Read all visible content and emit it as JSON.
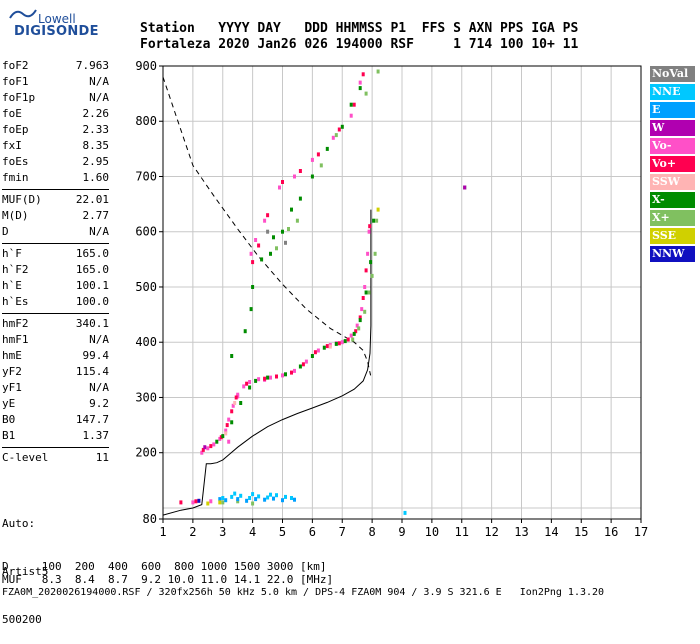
{
  "logo": {
    "top": "Lowell",
    "main": "DIGISONDE"
  },
  "header": {
    "line1": "Station   YYYY DAY   DDD HHMMSS P1  FFS S AXN PPS IGA PS",
    "line2": "Fortaleza 2020 Jan26 026 194000 RSF     1 714 100 10+ 11"
  },
  "params": {
    "group1": [
      {
        "label": "foF2",
        "value": "7.963"
      },
      {
        "label": "foF1",
        "value": "N/A"
      },
      {
        "label": "foF1p",
        "value": "N/A"
      },
      {
        "label": "foE",
        "value": "2.26"
      },
      {
        "label": "foEp",
        "value": "2.33"
      },
      {
        "label": "fxI",
        "value": "8.35"
      },
      {
        "label": "foEs",
        "value": "2.95"
      },
      {
        "label": "fmin",
        "value": "1.60"
      }
    ],
    "group2": [
      {
        "label": "MUF(D)",
        "value": "22.01"
      },
      {
        "label": "M(D)",
        "value": "2.77"
      },
      {
        "label": "D",
        "value": "N/A"
      }
    ],
    "group3": [
      {
        "label": "h`F",
        "value": "165.0"
      },
      {
        "label": "h`F2",
        "value": "165.0"
      },
      {
        "label": "h`E",
        "value": "100.1"
      },
      {
        "label": "h`Es",
        "value": "100.0"
      }
    ],
    "group4": [
      {
        "label": "hmF2",
        "value": "340.1"
      },
      {
        "label": "hmF1",
        "value": "N/A"
      },
      {
        "label": "hmE",
        "value": "99.4"
      },
      {
        "label": "yF2",
        "value": "115.4"
      },
      {
        "label": "yF1",
        "value": "N/A"
      },
      {
        "label": "yE",
        "value": "9.2"
      },
      {
        "label": "B0",
        "value": "147.7"
      },
      {
        "label": "B1",
        "value": "1.37"
      }
    ],
    "group5": [
      {
        "label": "C-level",
        "value": "11"
      }
    ]
  },
  "auto": {
    "line1": "Auto:",
    "line2": "Artist5",
    "line3": "500200"
  },
  "legend": [
    {
      "label": "NoVal",
      "color": "#808080",
      "text": "#ffffff"
    },
    {
      "label": "NNE",
      "color": "#00c8ff",
      "text": "#ffffff"
    },
    {
      "label": "E",
      "color": "#00a0ff",
      "text": "#ffffff"
    },
    {
      "label": "W",
      "color": "#b000b0",
      "text": "#ffffff"
    },
    {
      "label": "Vo-",
      "color": "#ff50c8",
      "text": "#ffffff"
    },
    {
      "label": "Vo+",
      "color": "#ff0050",
      "text": "#ffffff"
    },
    {
      "label": "SSW",
      "color": "#ffb4b4",
      "text": "#ffffff"
    },
    {
      "label": "X-",
      "color": "#008c00",
      "text": "#ffffff"
    },
    {
      "label": "X+",
      "color": "#80c060",
      "text": "#ffffff"
    },
    {
      "label": "SSE",
      "color": "#d0d000",
      "text": "#ffffff"
    },
    {
      "label": "NNW",
      "color": "#1010c0",
      "text": "#ffffff"
    }
  ],
  "footer": {
    "line1": "D     100  200  400  600  800 1000 1500 3000 [km]",
    "line2": "MUF   8.3  8.4  8.7  9.2 10.0 11.0 14.1 22.0 [MHz]",
    "line3": "FZA0M_2020026194000.RSF / 320fx256h 50 kHz 5.0 km / DPS-4 FZA0M 904 / 3.9 S 321.6 E   Ion2Png 1.3.20"
  },
  "chart_data": {
    "type": "scatter",
    "title": "",
    "xlabel": "",
    "ylabel": "",
    "xlim": [
      1,
      17
    ],
    "ylim": [
      80,
      900
    ],
    "xticks": [
      1,
      2,
      3,
      4,
      5,
      6,
      7,
      8,
      9,
      10,
      11,
      12,
      13,
      14,
      15,
      16,
      17
    ],
    "yticks": [
      80,
      200,
      300,
      400,
      500,
      600,
      700,
      800,
      900
    ],
    "grid": true,
    "series": [
      {
        "name": "Vo-",
        "color": "#ff50c8",
        "points": [
          [
            2.3,
            200
          ],
          [
            2.5,
            208
          ],
          [
            2.7,
            215
          ],
          [
            2.9,
            225
          ],
          [
            3.1,
            240
          ],
          [
            3.2,
            260
          ],
          [
            3.35,
            285
          ],
          [
            3.5,
            305
          ],
          [
            3.7,
            320
          ],
          [
            3.9,
            328
          ],
          [
            4.2,
            333
          ],
          [
            4.6,
            336
          ],
          [
            5.0,
            340
          ],
          [
            5.4,
            348
          ],
          [
            5.8,
            365
          ],
          [
            6.2,
            385
          ],
          [
            6.6,
            395
          ],
          [
            7.0,
            400
          ],
          [
            7.3,
            412
          ],
          [
            7.5,
            430
          ],
          [
            7.65,
            460
          ],
          [
            7.75,
            500
          ],
          [
            7.85,
            560
          ],
          [
            7.9,
            600
          ],
          [
            3.2,
            220
          ],
          [
            3.5,
            302
          ],
          [
            4.4,
            332
          ],
          [
            6.8,
            398
          ],
          [
            2.0,
            110
          ],
          [
            2.6,
            112
          ],
          [
            3.95,
            560
          ],
          [
            4.1,
            585
          ],
          [
            4.4,
            620
          ],
          [
            4.9,
            680
          ],
          [
            5.4,
            700
          ],
          [
            6.0,
            730
          ],
          [
            6.7,
            770
          ],
          [
            7.3,
            810
          ],
          [
            7.6,
            870
          ]
        ]
      },
      {
        "name": "Vo+",
        "color": "#ff0050",
        "points": [
          [
            2.35,
            205
          ],
          [
            2.6,
            212
          ],
          [
            2.95,
            228
          ],
          [
            3.15,
            250
          ],
          [
            3.3,
            275
          ],
          [
            3.45,
            300
          ],
          [
            3.8,
            325
          ],
          [
            4.4,
            334
          ],
          [
            4.8,
            338
          ],
          [
            5.3,
            345
          ],
          [
            5.7,
            360
          ],
          [
            6.1,
            382
          ],
          [
            6.5,
            393
          ],
          [
            6.9,
            398
          ],
          [
            7.2,
            405
          ],
          [
            7.45,
            420
          ],
          [
            7.6,
            445
          ],
          [
            7.7,
            480
          ],
          [
            7.8,
            530
          ],
          [
            7.92,
            610
          ],
          [
            4.0,
            545
          ],
          [
            4.2,
            575
          ],
          [
            4.5,
            630
          ],
          [
            5.0,
            690
          ],
          [
            5.6,
            710
          ],
          [
            6.2,
            740
          ],
          [
            6.9,
            785
          ],
          [
            7.4,
            830
          ],
          [
            7.7,
            885
          ],
          [
            1.6,
            110
          ],
          [
            2.1,
            112
          ]
        ]
      },
      {
        "name": "X-",
        "color": "#008c00",
        "points": [
          [
            3.0,
            230
          ],
          [
            3.3,
            255
          ],
          [
            3.6,
            290
          ],
          [
            3.9,
            318
          ],
          [
            4.1,
            330
          ],
          [
            4.5,
            336
          ],
          [
            5.1,
            342
          ],
          [
            5.6,
            356
          ],
          [
            6.0,
            375
          ],
          [
            6.4,
            390
          ],
          [
            6.8,
            397
          ],
          [
            7.1,
            402
          ],
          [
            7.4,
            415
          ],
          [
            7.6,
            440
          ],
          [
            7.8,
            490
          ],
          [
            7.95,
            545
          ],
          [
            8.05,
            620
          ],
          [
            4.3,
            550
          ],
          [
            4.6,
            560
          ],
          [
            4.7,
            590
          ],
          [
            5.0,
            600
          ],
          [
            5.3,
            640
          ],
          [
            5.6,
            660
          ],
          [
            6.0,
            700
          ],
          [
            6.5,
            750
          ],
          [
            7.0,
            790
          ],
          [
            7.3,
            830
          ],
          [
            7.6,
            860
          ],
          [
            3.75,
            420
          ],
          [
            3.95,
            460
          ],
          [
            4.0,
            500
          ],
          [
            2.8,
            220
          ],
          [
            11.1,
            680
          ],
          [
            3.3,
            375
          ]
        ]
      },
      {
        "name": "X+",
        "color": "#80c060",
        "points": [
          [
            7.35,
            405
          ],
          [
            7.55,
            425
          ],
          [
            7.75,
            455
          ],
          [
            7.9,
            490
          ],
          [
            8.0,
            520
          ],
          [
            8.1,
            560
          ],
          [
            8.15,
            620
          ],
          [
            4.8,
            570
          ],
          [
            5.2,
            605
          ],
          [
            5.5,
            620
          ],
          [
            6.3,
            720
          ],
          [
            6.8,
            775
          ],
          [
            7.8,
            850
          ],
          [
            8.2,
            890
          ],
          [
            3.0,
            110
          ],
          [
            3.5,
            112
          ],
          [
            4.0,
            108
          ]
        ]
      },
      {
        "name": "NNE",
        "color": "#00c8ff",
        "points": [
          [
            3.0,
            118
          ],
          [
            3.3,
            120
          ],
          [
            3.6,
            122
          ],
          [
            3.9,
            118
          ],
          [
            4.2,
            121
          ],
          [
            4.5,
            119
          ],
          [
            4.8,
            123
          ],
          [
            5.1,
            120
          ],
          [
            5.3,
            118
          ],
          [
            3.4,
            126
          ],
          [
            4.0,
            125
          ],
          [
            4.6,
            124
          ],
          [
            9.1,
            91
          ]
        ]
      },
      {
        "name": "E",
        "color": "#00a0ff",
        "points": [
          [
            3.1,
            114
          ],
          [
            3.5,
            116
          ],
          [
            3.8,
            113
          ],
          [
            4.1,
            116
          ],
          [
            4.4,
            115
          ],
          [
            4.7,
            117
          ],
          [
            5.0,
            114
          ],
          [
            5.4,
            115
          ],
          [
            2.9,
            116
          ]
        ]
      },
      {
        "name": "W",
        "color": "#b000b0",
        "points": [
          [
            11.1,
            680
          ],
          [
            2.4,
            210
          ]
        ]
      },
      {
        "name": "SSW",
        "color": "#ffb4b4",
        "points": [
          [
            3.1,
            235
          ],
          [
            3.4,
            290
          ],
          [
            6.6,
            392
          ]
        ]
      },
      {
        "name": "SSE",
        "color": "#d0d000",
        "points": [
          [
            2.5,
            108
          ],
          [
            2.9,
            110
          ],
          [
            8.2,
            640
          ]
        ]
      },
      {
        "name": "NNW",
        "color": "#1010c0",
        "points": [
          [
            2.2,
            113
          ]
        ]
      },
      {
        "name": "NoVal",
        "color": "#808080",
        "points": [
          [
            4.5,
            600
          ],
          [
            5.1,
            580
          ]
        ]
      }
    ],
    "profile_solid": [
      [
        1.0,
        87
      ],
      [
        1.6,
        96
      ],
      [
        2.0,
        100
      ],
      [
        2.3,
        106
      ],
      [
        2.45,
        180
      ],
      [
        2.6,
        180
      ],
      [
        2.8,
        182
      ],
      [
        3.0,
        187
      ],
      [
        3.2,
        196
      ],
      [
        3.5,
        210
      ],
      [
        4.0,
        230
      ],
      [
        4.5,
        247
      ],
      [
        5.0,
        260
      ],
      [
        5.5,
        271
      ],
      [
        6.0,
        281
      ],
      [
        6.5,
        291
      ],
      [
        7.0,
        303
      ],
      [
        7.4,
        315
      ],
      [
        7.7,
        330
      ],
      [
        7.85,
        350
      ],
      [
        7.93,
        380
      ],
      [
        7.96,
        430
      ],
      [
        7.96,
        640
      ]
    ],
    "profile_dashed": [
      [
        1.0,
        880
      ],
      [
        1.5,
        800
      ],
      [
        2.0,
        720
      ],
      [
        2.7,
        665
      ],
      [
        3.5,
        605
      ],
      [
        4.2,
        555
      ],
      [
        5.0,
        505
      ],
      [
        5.8,
        460
      ],
      [
        6.6,
        425
      ],
      [
        7.4,
        400
      ],
      [
        7.7,
        385
      ],
      [
        7.85,
        365
      ],
      [
        7.95,
        340
      ]
    ]
  }
}
